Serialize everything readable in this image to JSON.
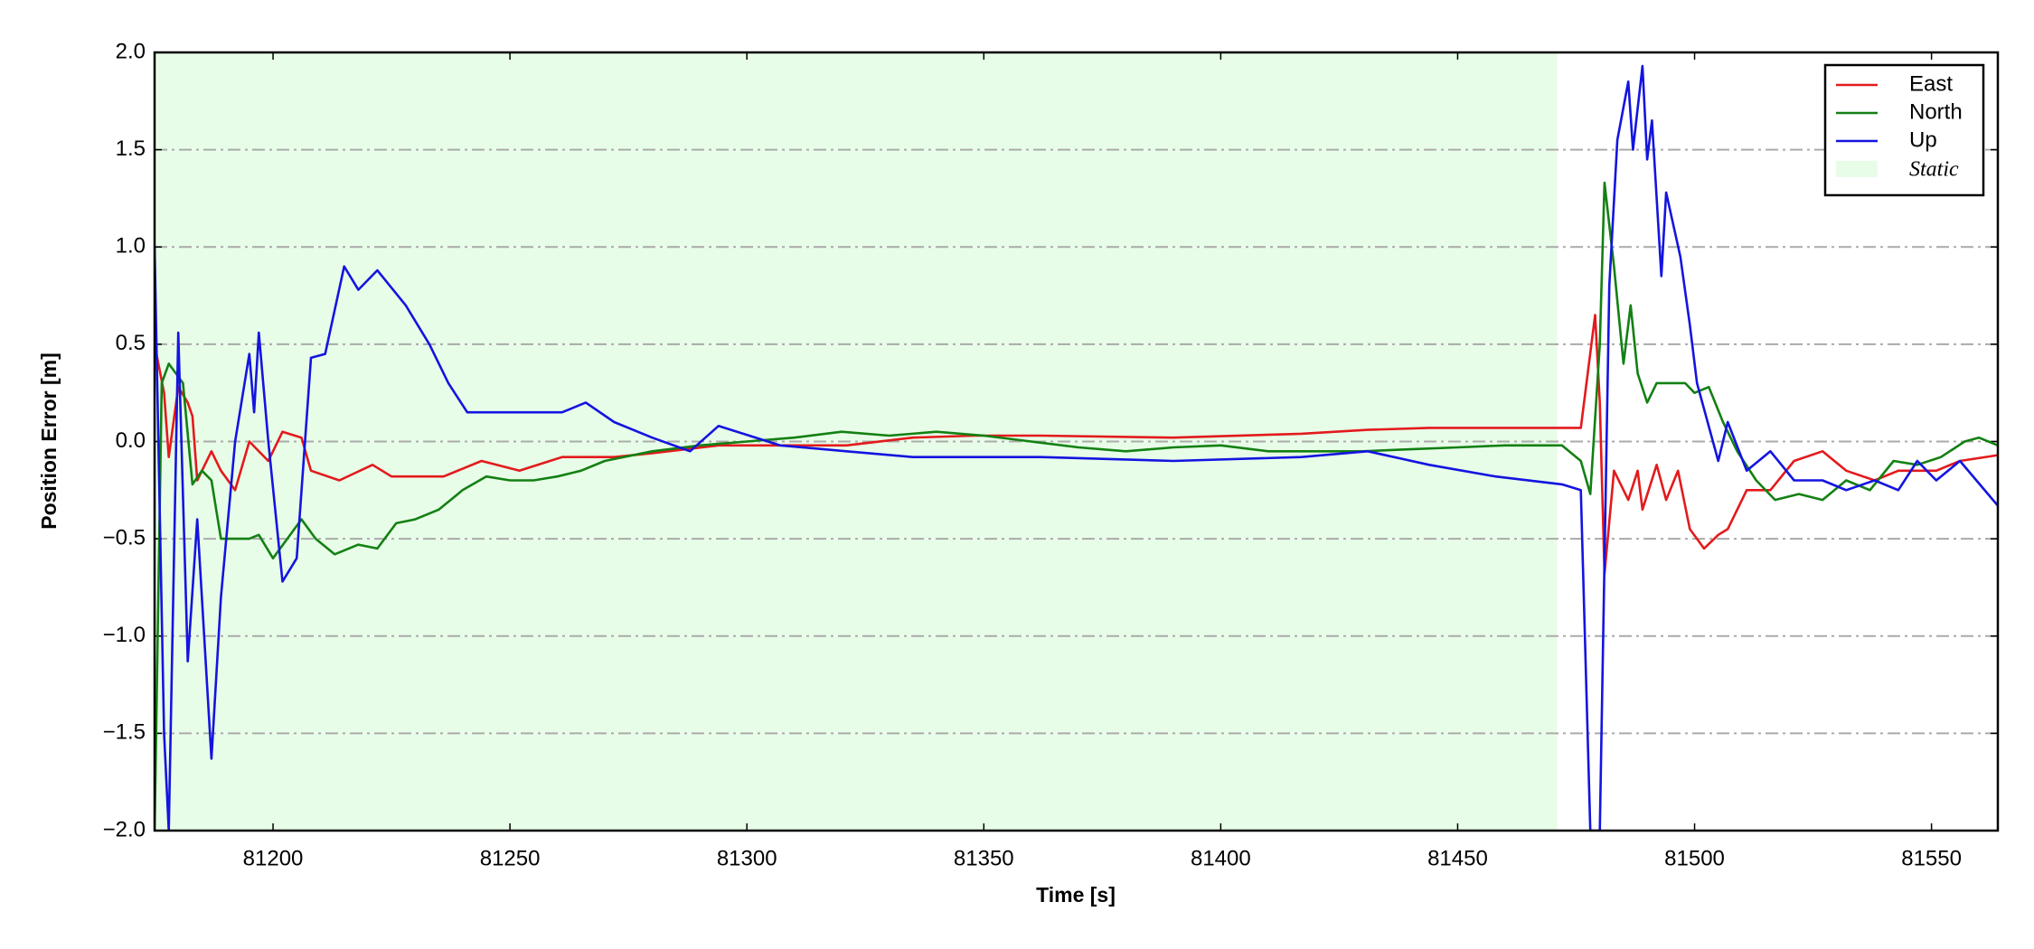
{
  "chart_data": {
    "type": "line",
    "xlabel": "Time [s]",
    "ylabel": "Position Error [m]",
    "xlim": [
      81175,
      81564
    ],
    "ylim": [
      -2.0,
      2.0
    ],
    "xticks": [
      81200,
      81250,
      81300,
      81350,
      81400,
      81450,
      81500,
      81550
    ],
    "yticks": [
      {
        "value": -2.0,
        "label": "−2.0"
      },
      {
        "value": -1.5,
        "label": "−1.5"
      },
      {
        "value": -1.0,
        "label": "−1.0"
      },
      {
        "value": -0.5,
        "label": "−0.5"
      },
      {
        "value": 0.0,
        "label": "0.0"
      },
      {
        "value": 0.5,
        "label": "0.5"
      },
      {
        "value": 1.0,
        "label": "1.0"
      },
      {
        "value": 1.5,
        "label": "1.5"
      },
      {
        "value": 2.0,
        "label": "2.0"
      }
    ],
    "grid": true,
    "legend": "upper right",
    "shaded_region": {
      "label": "Static",
      "xrange": [
        81175,
        81471
      ],
      "color": "#e8fde8"
    },
    "series": [
      {
        "name": "East",
        "color": "#e31a1c",
        "x": [
          81175,
          81177,
          81178,
          81180,
          81182,
          81183,
          81184,
          81187,
          81189,
          81192,
          81195,
          81199,
          81202,
          81206,
          81208,
          81214,
          81221,
          81225,
          81236,
          81244,
          81252,
          81261,
          81272,
          81280,
          81294,
          81307,
          81321,
          81335,
          81348,
          81362,
          81390,
          81417,
          81431,
          81444,
          81458,
          81476,
          81479,
          81480,
          81481,
          81483,
          81486,
          81488,
          81489,
          81492,
          81494,
          81496.5,
          81499,
          81502,
          81505,
          81507,
          81511,
          81516,
          81521,
          81527,
          81532,
          81538,
          81543,
          81551,
          81556,
          81564
        ],
        "values": [
          0.5,
          0.25,
          -0.08,
          0.28,
          0.2,
          0.13,
          -0.2,
          -0.05,
          -0.15,
          -0.25,
          0.0,
          -0.1,
          0.05,
          0.02,
          -0.15,
          -0.2,
          -0.12,
          -0.18,
          -0.18,
          -0.1,
          -0.15,
          -0.08,
          -0.08,
          -0.06,
          -0.02,
          -0.02,
          -0.02,
          0.02,
          0.03,
          0.03,
          0.02,
          0.04,
          0.06,
          0.07,
          0.07,
          0.07,
          0.65,
          0.2,
          -0.68,
          -0.15,
          -0.3,
          -0.15,
          -0.35,
          -0.12,
          -0.3,
          -0.15,
          -0.45,
          -0.55,
          -0.48,
          -0.45,
          -0.25,
          -0.25,
          -0.1,
          -0.05,
          -0.15,
          -0.2,
          -0.15,
          -0.15,
          -0.1,
          -0.07
        ]
      },
      {
        "name": "North",
        "color": "#138013",
        "x": [
          81175,
          81176.5,
          81178,
          81181,
          81183,
          81185,
          81187,
          81189,
          81192,
          81195,
          81197,
          81200,
          81203,
          81206,
          81209,
          81213,
          81218,
          81222,
          81226,
          81230,
          81235,
          81240,
          81245,
          81250,
          81255,
          81260,
          81265,
          81270,
          81280,
          81290,
          81300,
          81310,
          81320,
          81330,
          81340,
          81350,
          81360,
          81370,
          81380,
          81390,
          81400,
          81410,
          81420,
          81430,
          81440,
          81450,
          81460,
          81472,
          81476,
          81478,
          81480,
          81481,
          81483,
          81485,
          81486.5,
          81488,
          81490,
          81492,
          81495,
          81498,
          81500,
          81503,
          81506,
          81509,
          81513,
          81517,
          81522,
          81527,
          81532,
          81537,
          81542,
          81547,
          81552,
          81557,
          81560,
          81564
        ],
        "values": [
          -2.0,
          0.3,
          0.4,
          0.3,
          -0.22,
          -0.15,
          -0.2,
          -0.5,
          -0.5,
          -0.5,
          -0.48,
          -0.6,
          -0.5,
          -0.4,
          -0.5,
          -0.58,
          -0.53,
          -0.55,
          -0.42,
          -0.4,
          -0.35,
          -0.25,
          -0.18,
          -0.2,
          -0.2,
          -0.18,
          -0.15,
          -0.1,
          -0.05,
          -0.02,
          0.0,
          0.02,
          0.05,
          0.03,
          0.05,
          0.03,
          0.0,
          -0.03,
          -0.05,
          -0.03,
          -0.02,
          -0.05,
          -0.05,
          -0.05,
          -0.04,
          -0.03,
          -0.02,
          -0.02,
          -0.1,
          -0.27,
          0.5,
          1.33,
          0.9,
          0.4,
          0.7,
          0.35,
          0.2,
          0.3,
          0.3,
          0.3,
          0.25,
          0.28,
          0.1,
          -0.05,
          -0.2,
          -0.3,
          -0.27,
          -0.3,
          -0.2,
          -0.25,
          -0.1,
          -0.12,
          -0.08,
          0.0,
          0.02,
          -0.02
        ]
      },
      {
        "name": "Up",
        "color": "#1414e0",
        "x": [
          81175,
          81177,
          81178,
          81180,
          81182,
          81184,
          81187,
          81189,
          81192,
          81195,
          81196,
          81197,
          81199,
          81202,
          81205,
          81208,
          81211,
          81215,
          81218,
          81222,
          81228,
          81233,
          81237,
          81241,
          81252,
          81261,
          81266,
          81272,
          81280,
          81288,
          81294,
          81307,
          81321,
          81335,
          81362,
          81390,
          81417,
          81431,
          81444,
          81458,
          81472,
          81476,
          81478,
          81480,
          81482,
          81483.7,
          81486,
          81487,
          81489,
          81490,
          81491,
          81493,
          81494,
          81497,
          81499,
          81500.5,
          81505,
          81507,
          81511,
          81516,
          81521,
          81527,
          81532,
          81538,
          81543,
          81547,
          81551,
          81556,
          81564
        ],
        "values": [
          1.0,
          -1.5,
          -2.0,
          0.56,
          -1.13,
          -0.4,
          -1.63,
          -0.8,
          0.0,
          0.45,
          0.15,
          0.56,
          0.0,
          -0.72,
          -0.6,
          0.43,
          0.45,
          0.9,
          0.78,
          0.88,
          0.7,
          0.5,
          0.3,
          0.15,
          0.15,
          0.15,
          0.2,
          0.1,
          0.02,
          -0.05,
          0.08,
          -0.02,
          -0.05,
          -0.08,
          -0.08,
          -0.1,
          -0.08,
          -0.05,
          -0.12,
          -0.18,
          -0.22,
          -0.25,
          -2.0,
          -2.0,
          0.8,
          1.55,
          1.85,
          1.5,
          1.93,
          1.45,
          1.65,
          0.85,
          1.28,
          0.95,
          0.6,
          0.3,
          -0.1,
          0.1,
          -0.15,
          -0.05,
          -0.2,
          -0.2,
          -0.25,
          -0.2,
          -0.25,
          -0.1,
          -0.2,
          -0.1,
          -0.33
        ]
      }
    ]
  }
}
